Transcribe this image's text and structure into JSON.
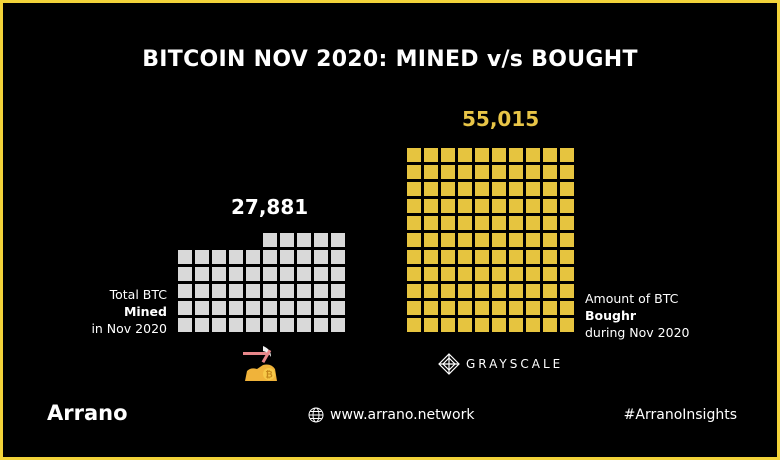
{
  "title": "BITCOIN NOV 2020: MINED v/s BOUGHT",
  "chart_data": {
    "type": "waffle",
    "series": [
      {
        "name": "Mined",
        "value": 27881,
        "value_label": "27,881",
        "color": "#d9d9d9",
        "cells": 55
      },
      {
        "name": "Bought",
        "value": 55015,
        "value_label": "55,015",
        "color": "#e6c43f",
        "cells": 110
      }
    ]
  },
  "labels": {
    "mined": {
      "line1": "Total BTC",
      "line2": "Mined",
      "line3": "in Nov 2020"
    },
    "bought": {
      "line1": "Amount of BTC",
      "line2": "Boughr",
      "line3": "during Nov 2020"
    }
  },
  "grayscale": {
    "text": "GRAYSCALE",
    "icon": "grayscale-logo-icon"
  },
  "miner_icon": "pickaxe-bitcoin-icon",
  "footer": {
    "brand": "Arrano",
    "website": "www.arrano.network",
    "website_icon": "globe-icon",
    "hashtag": "#ArranoInsights"
  },
  "colors": {
    "border": "#f2d33a",
    "background": "#000000",
    "accent": "#e8c547"
  }
}
